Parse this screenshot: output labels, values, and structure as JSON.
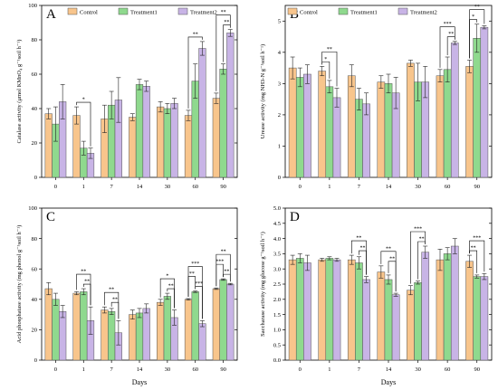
{
  "colors": [
    "#F8C58C",
    "#8FD98E",
    "#C8B4E6"
  ],
  "legend": [
    "Control",
    "Treatment1",
    "Treatment2"
  ],
  "days_label": "Days",
  "chart_data": [
    {
      "type": "bar",
      "panel": "A",
      "ylabel": "Catalase activity (μmol KMnO₄ g⁻¹soil h⁻¹)",
      "xlabel": "",
      "categories": [
        "0",
        "1",
        "7",
        "14",
        "30",
        "60",
        "90"
      ],
      "ylim": [
        0,
        100
      ],
      "yticks": [
        0,
        20,
        40,
        60,
        80,
        100
      ],
      "grid": false,
      "legend_position": "top",
      "series": [
        {
          "name": "Control",
          "values": [
            37,
            36,
            34,
            35,
            41,
            36,
            46
          ],
          "errors": [
            3,
            5,
            8,
            2,
            3,
            3,
            3
          ]
        },
        {
          "name": "Treatment1",
          "values": [
            31,
            17,
            42,
            54,
            40,
            56,
            63
          ],
          "errors": [
            10,
            4,
            8,
            3,
            3,
            10,
            3
          ]
        },
        {
          "name": "Treatment2",
          "values": [
            44,
            14,
            45,
            53,
            43,
            75,
            84
          ],
          "errors": [
            10,
            3,
            13,
            3,
            3,
            4,
            2
          ]
        }
      ],
      "annotations": [
        {
          "category": "1",
          "from": 0,
          "to": 2,
          "level": 1,
          "label": "*"
        },
        {
          "category": "60",
          "from": 0,
          "to": 2,
          "level": 1,
          "label": "**"
        },
        {
          "category": "90",
          "from": 0,
          "to": 2,
          "level": 2,
          "label": "**"
        },
        {
          "category": "90",
          "from": 1,
          "to": 2,
          "level": 1,
          "label": "**"
        }
      ]
    },
    {
      "type": "bar",
      "panel": "B",
      "ylabel": "Urease activity (mg NH3-N g⁻¹soil h⁻¹)",
      "xlabel": "",
      "categories": [
        "0",
        "1",
        "7",
        "14",
        "30",
        "60",
        "90"
      ],
      "ylim": [
        0,
        5.5
      ],
      "yticks": [
        0,
        1,
        2,
        3,
        4,
        5
      ],
      "grid": false,
      "legend_position": "top",
      "series": [
        {
          "name": "Control",
          "values": [
            3.5,
            3.4,
            3.25,
            3.05,
            3.65,
            3.25,
            3.55
          ],
          "errors": [
            0.35,
            0.15,
            0.35,
            0.2,
            0.1,
            0.2,
            0.2
          ]
        },
        {
          "name": "Treatment1",
          "values": [
            3.2,
            2.9,
            2.5,
            3.0,
            3.05,
            3.45,
            4.45
          ],
          "errors": [
            0.3,
            0.2,
            0.35,
            0.3,
            0.6,
            0.4,
            0.45
          ]
        },
        {
          "name": "Treatment2",
          "values": [
            3.3,
            2.55,
            2.35,
            2.7,
            3.05,
            4.3,
            4.8
          ],
          "errors": [
            0.3,
            0.3,
            0.35,
            0.5,
            0.5,
            0.05,
            0.05
          ]
        }
      ],
      "annotations": [
        {
          "category": "1",
          "from": 0,
          "to": 2,
          "level": 2,
          "label": "**"
        },
        {
          "category": "1",
          "from": 0,
          "to": 1,
          "level": 1,
          "label": "*"
        },
        {
          "category": "60",
          "from": 0,
          "to": 2,
          "level": 2,
          "label": "***"
        },
        {
          "category": "60",
          "from": 1,
          "to": 2,
          "level": 1,
          "label": "**"
        },
        {
          "category": "90",
          "from": 0,
          "to": 2,
          "level": 2,
          "label": "**"
        },
        {
          "category": "90",
          "from": 0,
          "to": 1,
          "level": 1,
          "label": "*"
        }
      ]
    },
    {
      "type": "bar",
      "panel": "C",
      "ylabel": "Acid phosphatase activity (mg phenol g⁻¹soil h⁻¹)",
      "xlabel": "Days",
      "categories": [
        "0",
        "1",
        "7",
        "14",
        "30",
        "60",
        "90"
      ],
      "ylim": [
        0,
        100
      ],
      "yticks": [
        0,
        20,
        40,
        60,
        80,
        100
      ],
      "grid": false,
      "series": [
        {
          "name": "Control",
          "values": [
            47,
            44,
            33,
            30,
            38,
            40,
            47
          ],
          "errors": [
            4,
            1,
            2,
            3,
            2,
            0.5,
            0.5
          ]
        },
        {
          "name": "Treatment1",
          "values": [
            40,
            45,
            32,
            31,
            42,
            45,
            53
          ],
          "errors": [
            4,
            2,
            2,
            3,
            2,
            0.5,
            0.5
          ]
        },
        {
          "name": "Treatment2",
          "values": [
            32,
            26,
            18,
            34,
            28,
            24,
            50
          ],
          "errors": [
            4,
            9,
            8,
            3,
            5,
            2,
            0.5
          ]
        }
      ],
      "annotations": [
        {
          "category": "1",
          "from": 0,
          "to": 2,
          "level": 2,
          "label": "**"
        },
        {
          "category": "1",
          "from": 1,
          "to": 2,
          "level": 1,
          "label": "**"
        },
        {
          "category": "7",
          "from": 0,
          "to": 2,
          "level": 2,
          "label": "**"
        },
        {
          "category": "7",
          "from": 1,
          "to": 2,
          "level": 1,
          "label": "**"
        },
        {
          "category": "30",
          "from": 0,
          "to": 2,
          "level": 2,
          "label": "*"
        },
        {
          "category": "30",
          "from": 1,
          "to": 2,
          "level": 1,
          "label": "**"
        },
        {
          "category": "60",
          "from": 0,
          "to": 2,
          "level": 3,
          "label": "***"
        },
        {
          "category": "60",
          "from": 0,
          "to": 1,
          "level": 2,
          "label": "**"
        },
        {
          "category": "60",
          "from": 1,
          "to": 2,
          "level": 1,
          "label": "***"
        },
        {
          "category": "90",
          "from": 0,
          "to": 2,
          "level": 3,
          "label": "**"
        },
        {
          "category": "90",
          "from": 0,
          "to": 1,
          "level": 2,
          "label": "***"
        },
        {
          "category": "90",
          "from": 1,
          "to": 2,
          "level": 1,
          "label": "**"
        }
      ]
    },
    {
      "type": "bar",
      "panel": "D",
      "ylabel": "Saccharase activity (mg glucose g⁻¹soil h⁻¹)",
      "xlabel": "Days",
      "categories": [
        "0",
        "1",
        "7",
        "14",
        "30",
        "60",
        "90"
      ],
      "ylim": [
        0,
        5
      ],
      "yticks": [
        0,
        0.5,
        1.0,
        1.5,
        2.0,
        2.5,
        3.0,
        3.5,
        4.0,
        4.5,
        5.0
      ],
      "grid": false,
      "series": [
        {
          "name": "Control",
          "values": [
            3.3,
            3.3,
            3.3,
            2.9,
            2.3,
            3.3,
            3.25
          ],
          "errors": [
            0.15,
            0.05,
            0.15,
            0.2,
            0.15,
            0.35,
            0.2
          ]
        },
        {
          "name": "Treatment1",
          "values": [
            3.35,
            3.35,
            3.2,
            2.65,
            2.55,
            3.5,
            2.75
          ],
          "errors": [
            0.15,
            0.05,
            0.2,
            0.15,
            0.05,
            0.2,
            0.05
          ]
        },
        {
          "name": "Treatment2",
          "values": [
            3.2,
            3.3,
            2.65,
            2.15,
            3.55,
            3.75,
            2.75
          ],
          "errors": [
            0.25,
            0.05,
            0.1,
            0.05,
            0.2,
            0.25,
            0.1
          ]
        }
      ],
      "annotations": [
        {
          "category": "7",
          "from": 0,
          "to": 2,
          "level": 2,
          "label": "**"
        },
        {
          "category": "7",
          "from": 1,
          "to": 2,
          "level": 1,
          "label": "**"
        },
        {
          "category": "14",
          "from": 0,
          "to": 2,
          "level": 2,
          "label": "**"
        },
        {
          "category": "14",
          "from": 1,
          "to": 2,
          "level": 1,
          "label": "**"
        },
        {
          "category": "30",
          "from": 0,
          "to": 2,
          "level": 2,
          "label": "***"
        },
        {
          "category": "30",
          "from": 1,
          "to": 2,
          "level": 1,
          "label": "**"
        },
        {
          "category": "90",
          "from": 0,
          "to": 2,
          "level": 2,
          "label": "***"
        },
        {
          "category": "90",
          "from": 0,
          "to": 1,
          "level": 1,
          "label": "**"
        }
      ]
    }
  ]
}
